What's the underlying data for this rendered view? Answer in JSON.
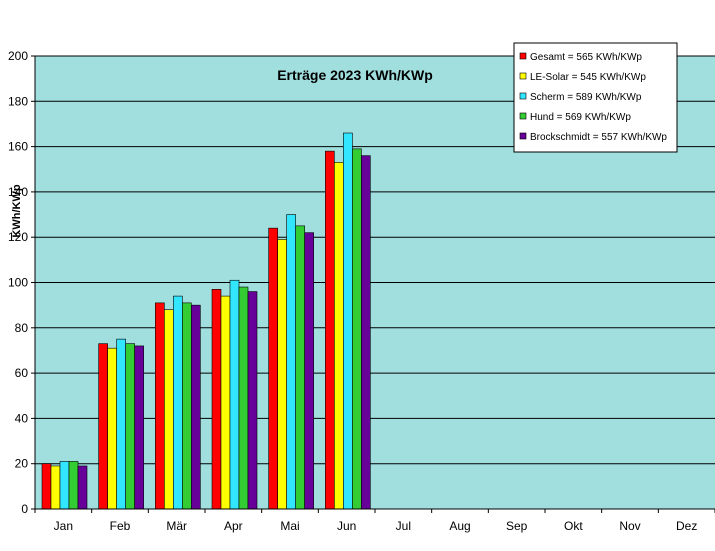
{
  "chart_data": {
    "type": "bar",
    "title": "Erträge 2023 KWh/KWp",
    "ylabel": "KWh/KWp",
    "xlabel": "",
    "ylim": [
      0,
      200
    ],
    "y_ticks": [
      0,
      20,
      40,
      60,
      80,
      100,
      120,
      140,
      160,
      180,
      200
    ],
    "grid": true,
    "legend_position": "top-right",
    "categories": [
      "Jan",
      "Feb",
      "Mär",
      "Apr",
      "Mai",
      "Jun",
      "Jul",
      "Aug",
      "Sep",
      "Okt",
      "Nov",
      "Dez"
    ],
    "series": [
      {
        "legend_label": "Gesamt = 565 KWh/KWp",
        "color": "#ff0000",
        "values": [
          20,
          73,
          91,
          97,
          124,
          158,
          null,
          null,
          null,
          null,
          null,
          null
        ]
      },
      {
        "legend_label": "LE-Solar = 545 KWh/KWp",
        "color": "#ffff00",
        "values": [
          19,
          71,
          88,
          94,
          119,
          153,
          null,
          null,
          null,
          null,
          null,
          null
        ]
      },
      {
        "legend_label": "Scherm = 589 KWh/KWp",
        "color": "#33e6ff",
        "values": [
          21,
          75,
          94,
          101,
          130,
          166,
          null,
          null,
          null,
          null,
          null,
          null
        ]
      },
      {
        "legend_label": "Hund = 569 KWh/KWp",
        "color": "#33cc33",
        "values": [
          21,
          73,
          91,
          98,
          125,
          159,
          null,
          null,
          null,
          null,
          null,
          null
        ]
      },
      {
        "legend_label": "Brockschmidt = 557 KWh/KWp",
        "color": "#660099",
        "values": [
          19,
          72,
          90,
          96,
          122,
          156,
          null,
          null,
          null,
          null,
          null,
          null
        ]
      }
    ],
    "colors": {
      "plot_background": "#a1dfdf",
      "gridline": "#000000",
      "axis": "#000000"
    }
  }
}
